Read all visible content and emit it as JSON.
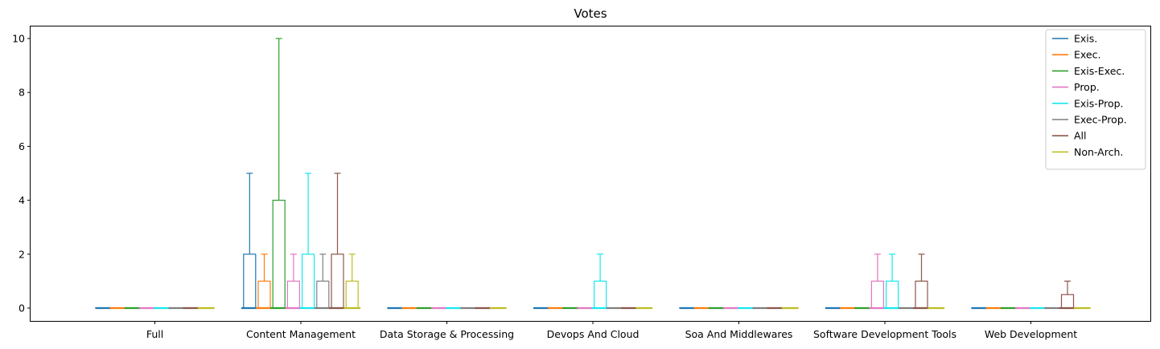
{
  "chart_data": {
    "type": "box",
    "title": "Votes",
    "xlabel": "",
    "ylabel": "",
    "categories": [
      "Full",
      "Content Management",
      "Data Storage & Processing",
      "Devops And Cloud",
      "Soa And Middlewares",
      "Software Development Tools",
      "Web Development"
    ],
    "y_ticks": [
      "0",
      "2",
      "4",
      "6",
      "8",
      "10"
    ],
    "ylim": [
      -0.5,
      10.5
    ],
    "legend_position": "top-right",
    "series": [
      {
        "name": "Exis.",
        "color": "#1f77b4",
        "boxes": [
          [
            0,
            0,
            0,
            0,
            0
          ],
          [
            0,
            0,
            0,
            2,
            5
          ],
          [
            0,
            0,
            0,
            0,
            0
          ],
          [
            0,
            0,
            0,
            0,
            0
          ],
          [
            0,
            0,
            0,
            0,
            0
          ],
          [
            0,
            0,
            0,
            0,
            0
          ],
          [
            0,
            0,
            0,
            0,
            0
          ]
        ]
      },
      {
        "name": "Exec.",
        "color": "#ff7f0e",
        "boxes": [
          [
            0,
            0,
            0,
            0,
            0
          ],
          [
            0,
            0,
            0,
            1,
            2
          ],
          [
            0,
            0,
            0,
            0,
            0
          ],
          [
            0,
            0,
            0,
            0,
            0
          ],
          [
            0,
            0,
            0,
            0,
            0
          ],
          [
            0,
            0,
            0,
            0,
            0
          ],
          [
            0,
            0,
            0,
            0,
            0
          ]
        ]
      },
      {
        "name": "Exis-Exec.",
        "color": "#2ca02c",
        "boxes": [
          [
            0,
            0,
            0,
            0,
            0
          ],
          [
            0,
            0,
            0,
            4,
            10
          ],
          [
            0,
            0,
            0,
            0,
            0
          ],
          [
            0,
            0,
            0,
            0,
            0
          ],
          [
            0,
            0,
            0,
            0,
            0
          ],
          [
            0,
            0,
            0,
            0,
            0
          ],
          [
            0,
            0,
            0,
            0,
            0
          ]
        ]
      },
      {
        "name": "Prop.",
        "color": "#e377c2",
        "boxes": [
          [
            0,
            0,
            0,
            0,
            0
          ],
          [
            0,
            0,
            0,
            1,
            2
          ],
          [
            0,
            0,
            0,
            0,
            0
          ],
          [
            0,
            0,
            0,
            0,
            0
          ],
          [
            0,
            0,
            0,
            0,
            0
          ],
          [
            0,
            0,
            0,
            1,
            2
          ],
          [
            0,
            0,
            0,
            0,
            0
          ]
        ]
      },
      {
        "name": "Exis-Prop.",
        "color": "#17e8f0",
        "boxes": [
          [
            0,
            0,
            0,
            0,
            0
          ],
          [
            0,
            0,
            0,
            2,
            5
          ],
          [
            0,
            0,
            0,
            0,
            0
          ],
          [
            0,
            0,
            0,
            1,
            2
          ],
          [
            0,
            0,
            0,
            0,
            0
          ],
          [
            0,
            0,
            0,
            1,
            2
          ],
          [
            0,
            0,
            0,
            0,
            0
          ]
        ]
      },
      {
        "name": "Exec-Prop.",
        "color": "#7f7f7f",
        "boxes": [
          [
            0,
            0,
            0,
            0,
            0
          ],
          [
            0,
            0,
            0,
            1,
            2
          ],
          [
            0,
            0,
            0,
            0,
            0
          ],
          [
            0,
            0,
            0,
            0,
            0
          ],
          [
            0,
            0,
            0,
            0,
            0
          ],
          [
            0,
            0,
            0,
            0,
            0
          ],
          [
            0,
            0,
            0,
            0,
            0
          ]
        ]
      },
      {
        "name": "All",
        "color": "#8c564b",
        "boxes": [
          [
            0,
            0,
            0,
            0,
            0
          ],
          [
            0,
            0,
            0,
            2,
            5
          ],
          [
            0,
            0,
            0,
            0,
            0
          ],
          [
            0,
            0,
            0,
            0,
            0
          ],
          [
            0,
            0,
            0,
            0,
            0
          ],
          [
            0,
            0,
            0,
            1,
            2
          ],
          [
            0,
            0,
            0,
            0.5,
            1
          ]
        ]
      },
      {
        "name": "Non-Arch.",
        "color": "#bcbd22",
        "boxes": [
          [
            0,
            0,
            0,
            0,
            0
          ],
          [
            0,
            0,
            0,
            1,
            2
          ],
          [
            0,
            0,
            0,
            0,
            0
          ],
          [
            0,
            0,
            0,
            0,
            0
          ],
          [
            0,
            0,
            0,
            0,
            0
          ],
          [
            0,
            0,
            0,
            0,
            0
          ],
          [
            0,
            0,
            0,
            0,
            0
          ]
        ]
      }
    ]
  }
}
